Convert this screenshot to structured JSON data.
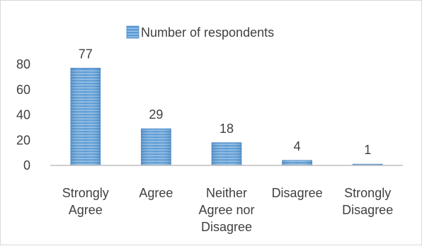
{
  "chart_data": {
    "type": "bar",
    "title": "",
    "xlabel": "",
    "ylabel": "",
    "categories": [
      [
        "Strongly",
        "Agree"
      ],
      [
        "Agree"
      ],
      [
        "Neither",
        "Agree nor",
        "Disagree"
      ],
      [
        "Disagree"
      ],
      [
        "Strongly",
        "Disagree"
      ]
    ],
    "series": [
      {
        "name": "Number of respondents",
        "values": [
          77,
          29,
          18,
          4,
          1
        ],
        "color": "#5b9bd5"
      }
    ],
    "data_labels": [
      "77",
      "29",
      "18",
      "4",
      "1"
    ],
    "y_ticks": [
      "0",
      "20",
      "40",
      "60",
      "80"
    ],
    "ylim": [
      0,
      80
    ],
    "grid": false,
    "legend_position": "top"
  }
}
